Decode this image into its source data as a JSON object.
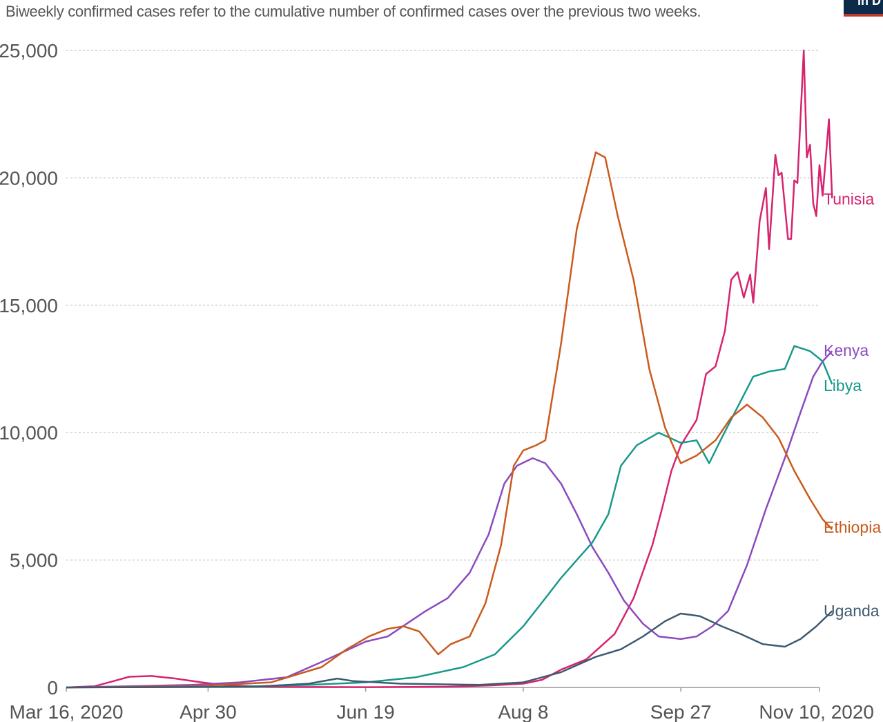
{
  "header": {
    "subtitle": "Biweekly confirmed cases refer to the cumulative number of confirmed cases over the previous two weeks.",
    "logo_text": "in D"
  },
  "chart_data": {
    "type": "line",
    "title": "",
    "subtitle": "Biweekly confirmed cases refer to the cumulative number of confirmed cases over the previous two weeks.",
    "xlabel": "",
    "ylabel": "",
    "x_range": [
      "2020-03-16",
      "2020-11-10"
    ],
    "ylim": [
      0,
      25000
    ],
    "grid": "horizontal dotted",
    "y_ticks": [
      {
        "value": 0,
        "label": "0"
      },
      {
        "value": 5000,
        "label": "5,000"
      },
      {
        "value": 10000,
        "label": "10,000"
      },
      {
        "value": 15000,
        "label": "15,000"
      },
      {
        "value": 20000,
        "label": "20,000"
      },
      {
        "value": 25000,
        "label": "25,000"
      }
    ],
    "x_ticks": [
      {
        "date": "2020-03-16",
        "label": "Mar 16, 2020"
      },
      {
        "date": "2020-04-30",
        "label": "Apr 30"
      },
      {
        "date": "2020-06-19",
        "label": "Jun 19"
      },
      {
        "date": "2020-08-08",
        "label": "Aug 8"
      },
      {
        "date": "2020-09-27",
        "label": "Sep 27"
      },
      {
        "date": "2020-11-10",
        "label": "Nov 10, 2020"
      }
    ],
    "series": [
      {
        "name": "Tunisia",
        "color": "#d6246e",
        "points": [
          [
            "2020-03-16",
            0
          ],
          [
            "2020-03-25",
            50
          ],
          [
            "2020-03-31",
            250
          ],
          [
            "2020-04-05",
            420
          ],
          [
            "2020-04-12",
            450
          ],
          [
            "2020-04-19",
            360
          ],
          [
            "2020-04-28",
            200
          ],
          [
            "2020-05-06",
            80
          ],
          [
            "2020-05-20",
            20
          ],
          [
            "2020-06-19",
            10
          ],
          [
            "2020-07-15",
            30
          ],
          [
            "2020-07-29",
            80
          ],
          [
            "2020-08-08",
            150
          ],
          [
            "2020-08-14",
            300
          ],
          [
            "2020-08-20",
            700
          ],
          [
            "2020-08-28",
            1100
          ],
          [
            "2020-09-06",
            2100
          ],
          [
            "2020-09-12",
            3500
          ],
          [
            "2020-09-18",
            5600
          ],
          [
            "2020-09-21",
            7000
          ],
          [
            "2020-09-24",
            8500
          ],
          [
            "2020-09-27",
            9500
          ],
          [
            "2020-10-02",
            10500
          ],
          [
            "2020-10-05",
            12300
          ],
          [
            "2020-10-08",
            12600
          ],
          [
            "2020-10-11",
            14000
          ],
          [
            "2020-10-13",
            16000
          ],
          [
            "2020-10-15",
            16300
          ],
          [
            "2020-10-17",
            15300
          ],
          [
            "2020-10-19",
            16200
          ],
          [
            "2020-10-20",
            15100
          ],
          [
            "2020-10-22",
            18300
          ],
          [
            "2020-10-24",
            19600
          ],
          [
            "2020-10-25",
            17200
          ],
          [
            "2020-10-27",
            20900
          ],
          [
            "2020-10-28",
            20100
          ],
          [
            "2020-10-29",
            20200
          ],
          [
            "2020-10-31",
            17600
          ],
          [
            "2020-11-01",
            17600
          ],
          [
            "2020-11-02",
            19900
          ],
          [
            "2020-11-03",
            19800
          ],
          [
            "2020-11-05",
            25000
          ],
          [
            "2020-11-06",
            20800
          ],
          [
            "2020-11-07",
            21300
          ],
          [
            "2020-11-08",
            19000
          ],
          [
            "2020-11-09",
            18500
          ],
          [
            "2020-11-10",
            20500
          ],
          [
            "2020-11-11",
            19300
          ],
          [
            "2020-11-13",
            22300
          ],
          [
            "2020-11-14",
            19200
          ]
        ]
      },
      {
        "name": "Kenya",
        "color": "#8a4bbf",
        "points": [
          [
            "2020-03-16",
            0
          ],
          [
            "2020-04-05",
            50
          ],
          [
            "2020-04-25",
            100
          ],
          [
            "2020-05-10",
            200
          ],
          [
            "2020-05-25",
            400
          ],
          [
            "2020-06-05",
            1000
          ],
          [
            "2020-06-12",
            1400
          ],
          [
            "2020-06-19",
            1800
          ],
          [
            "2020-06-26",
            2000
          ],
          [
            "2020-07-02",
            2500
          ],
          [
            "2020-07-08",
            3000
          ],
          [
            "2020-07-15",
            3500
          ],
          [
            "2020-07-22",
            4500
          ],
          [
            "2020-07-28",
            6000
          ],
          [
            "2020-08-02",
            8000
          ],
          [
            "2020-08-06",
            8700
          ],
          [
            "2020-08-11",
            9000
          ],
          [
            "2020-08-15",
            8800
          ],
          [
            "2020-08-20",
            8000
          ],
          [
            "2020-08-25",
            6800
          ],
          [
            "2020-08-30",
            5500
          ],
          [
            "2020-09-04",
            4500
          ],
          [
            "2020-09-09",
            3400
          ],
          [
            "2020-09-15",
            2500
          ],
          [
            "2020-09-20",
            2000
          ],
          [
            "2020-09-27",
            1900
          ],
          [
            "2020-10-02",
            2000
          ],
          [
            "2020-10-07",
            2400
          ],
          [
            "2020-10-12",
            3000
          ],
          [
            "2020-10-18",
            4800
          ],
          [
            "2020-10-24",
            7000
          ],
          [
            "2020-10-30",
            9000
          ],
          [
            "2020-11-04",
            10800
          ],
          [
            "2020-11-08",
            12200
          ],
          [
            "2020-11-11",
            12800
          ],
          [
            "2020-11-14",
            13200
          ]
        ]
      },
      {
        "name": "Libya",
        "color": "#17998a",
        "points": [
          [
            "2020-03-16",
            0
          ],
          [
            "2020-04-15",
            20
          ],
          [
            "2020-05-10",
            30
          ],
          [
            "2020-06-01",
            100
          ],
          [
            "2020-06-19",
            200
          ],
          [
            "2020-07-05",
            400
          ],
          [
            "2020-07-20",
            800
          ],
          [
            "2020-07-30",
            1300
          ],
          [
            "2020-08-08",
            2400
          ],
          [
            "2020-08-15",
            3500
          ],
          [
            "2020-08-20",
            4300
          ],
          [
            "2020-08-25",
            5000
          ],
          [
            "2020-08-30",
            5700
          ],
          [
            "2020-09-04",
            6800
          ],
          [
            "2020-09-08",
            8700
          ],
          [
            "2020-09-13",
            9500
          ],
          [
            "2020-09-20",
            10000
          ],
          [
            "2020-09-27",
            9600
          ],
          [
            "2020-10-02",
            9700
          ],
          [
            "2020-10-06",
            8800
          ],
          [
            "2020-10-10",
            9800
          ],
          [
            "2020-10-15",
            11000
          ],
          [
            "2020-10-20",
            12200
          ],
          [
            "2020-10-25",
            12400
          ],
          [
            "2020-10-30",
            12500
          ],
          [
            "2020-11-02",
            13400
          ],
          [
            "2020-11-07",
            13200
          ],
          [
            "2020-11-11",
            12800
          ],
          [
            "2020-11-14",
            11900
          ]
        ]
      },
      {
        "name": "Ethiopia",
        "color": "#c95b1e",
        "points": [
          [
            "2020-03-16",
            0
          ],
          [
            "2020-04-25",
            50
          ],
          [
            "2020-05-20",
            200
          ],
          [
            "2020-06-05",
            800
          ],
          [
            "2020-06-13",
            1500
          ],
          [
            "2020-06-20",
            2000
          ],
          [
            "2020-06-26",
            2300
          ],
          [
            "2020-07-01",
            2400
          ],
          [
            "2020-07-06",
            2200
          ],
          [
            "2020-07-12",
            1300
          ],
          [
            "2020-07-16",
            1700
          ],
          [
            "2020-07-22",
            2000
          ],
          [
            "2020-07-27",
            3300
          ],
          [
            "2020-08-01",
            5600
          ],
          [
            "2020-08-05",
            8700
          ],
          [
            "2020-08-08",
            9300
          ],
          [
            "2020-08-12",
            9500
          ],
          [
            "2020-08-15",
            9700
          ],
          [
            "2020-08-20",
            13500
          ],
          [
            "2020-08-25",
            18000
          ],
          [
            "2020-08-31",
            21000
          ],
          [
            "2020-09-03",
            20800
          ],
          [
            "2020-09-07",
            18500
          ],
          [
            "2020-09-12",
            16000
          ],
          [
            "2020-09-17",
            12500
          ],
          [
            "2020-09-22",
            10200
          ],
          [
            "2020-09-27",
            8800
          ],
          [
            "2020-10-02",
            9100
          ],
          [
            "2020-10-08",
            9700
          ],
          [
            "2020-10-13",
            10600
          ],
          [
            "2020-10-18",
            11100
          ],
          [
            "2020-10-23",
            10600
          ],
          [
            "2020-10-28",
            9800
          ],
          [
            "2020-11-02",
            8500
          ],
          [
            "2020-11-07",
            7400
          ],
          [
            "2020-11-11",
            6600
          ],
          [
            "2020-11-14",
            6200
          ]
        ]
      },
      {
        "name": "Uganda",
        "color": "#3d5a72",
        "points": [
          [
            "2020-03-16",
            0
          ],
          [
            "2020-04-15",
            10
          ],
          [
            "2020-05-15",
            30
          ],
          [
            "2020-06-01",
            150
          ],
          [
            "2020-06-10",
            350
          ],
          [
            "2020-06-15",
            250
          ],
          [
            "2020-06-30",
            150
          ],
          [
            "2020-07-25",
            100
          ],
          [
            "2020-08-08",
            200
          ],
          [
            "2020-08-20",
            600
          ],
          [
            "2020-08-31",
            1200
          ],
          [
            "2020-09-08",
            1500
          ],
          [
            "2020-09-15",
            2000
          ],
          [
            "2020-09-22",
            2600
          ],
          [
            "2020-09-27",
            2900
          ],
          [
            "2020-10-03",
            2800
          ],
          [
            "2020-10-10",
            2400
          ],
          [
            "2020-10-16",
            2100
          ],
          [
            "2020-10-23",
            1700
          ],
          [
            "2020-10-30",
            1600
          ],
          [
            "2020-11-04",
            1900
          ],
          [
            "2020-11-09",
            2400
          ],
          [
            "2020-11-14",
            3000
          ]
        ]
      }
    ]
  }
}
